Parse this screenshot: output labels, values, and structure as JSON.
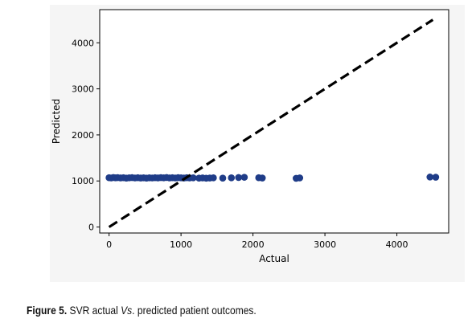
{
  "chart_data": {
    "type": "scatter",
    "title": "",
    "xlabel": "Actual",
    "ylabel": "Predicted",
    "xlim": [
      -130,
      4720
    ],
    "ylim": [
      -130,
      4720
    ],
    "x_ticks": [
      0,
      1000,
      2000,
      3000,
      4000
    ],
    "y_ticks": [
      0,
      1000,
      2000,
      3000,
      4000
    ],
    "grid": false,
    "legend": "none",
    "marker_color": "#1f3c88",
    "reference_line": {
      "x": [
        0,
        4500
      ],
      "y": [
        0,
        4500
      ],
      "style": "dashed",
      "color": "#000000"
    },
    "points": [
      {
        "x": 0,
        "y": 1070
      },
      {
        "x": 30,
        "y": 1065
      },
      {
        "x": 60,
        "y": 1075
      },
      {
        "x": 90,
        "y": 1068
      },
      {
        "x": 120,
        "y": 1072
      },
      {
        "x": 160,
        "y": 1066
      },
      {
        "x": 200,
        "y": 1070
      },
      {
        "x": 240,
        "y": 1062
      },
      {
        "x": 280,
        "y": 1068
      },
      {
        "x": 320,
        "y": 1073
      },
      {
        "x": 360,
        "y": 1065
      },
      {
        "x": 400,
        "y": 1070
      },
      {
        "x": 440,
        "y": 1064
      },
      {
        "x": 480,
        "y": 1068
      },
      {
        "x": 520,
        "y": 1062
      },
      {
        "x": 560,
        "y": 1068
      },
      {
        "x": 600,
        "y": 1065
      },
      {
        "x": 640,
        "y": 1070
      },
      {
        "x": 680,
        "y": 1066
      },
      {
        "x": 720,
        "y": 1072
      },
      {
        "x": 760,
        "y": 1068
      },
      {
        "x": 800,
        "y": 1074
      },
      {
        "x": 840,
        "y": 1066
      },
      {
        "x": 880,
        "y": 1070
      },
      {
        "x": 920,
        "y": 1065
      },
      {
        "x": 960,
        "y": 1072
      },
      {
        "x": 1000,
        "y": 1068
      },
      {
        "x": 1040,
        "y": 1064
      },
      {
        "x": 1080,
        "y": 1070
      },
      {
        "x": 1120,
        "y": 1066
      },
      {
        "x": 1170,
        "y": 1068
      },
      {
        "x": 1250,
        "y": 1062
      },
      {
        "x": 1300,
        "y": 1066
      },
      {
        "x": 1350,
        "y": 1060
      },
      {
        "x": 1400,
        "y": 1064
      },
      {
        "x": 1450,
        "y": 1068
      },
      {
        "x": 1580,
        "y": 1062
      },
      {
        "x": 1700,
        "y": 1068
      },
      {
        "x": 1800,
        "y": 1075
      },
      {
        "x": 1880,
        "y": 1080
      },
      {
        "x": 2080,
        "y": 1070
      },
      {
        "x": 2130,
        "y": 1064
      },
      {
        "x": 2600,
        "y": 1058
      },
      {
        "x": 2650,
        "y": 1066
      },
      {
        "x": 4460,
        "y": 1085
      },
      {
        "x": 4540,
        "y": 1082
      }
    ]
  },
  "caption": {
    "lead": "Figure 5.",
    "part1": " SVR actual ",
    "italic": "Vs",
    "part2": ". predicted patient outcomes."
  }
}
